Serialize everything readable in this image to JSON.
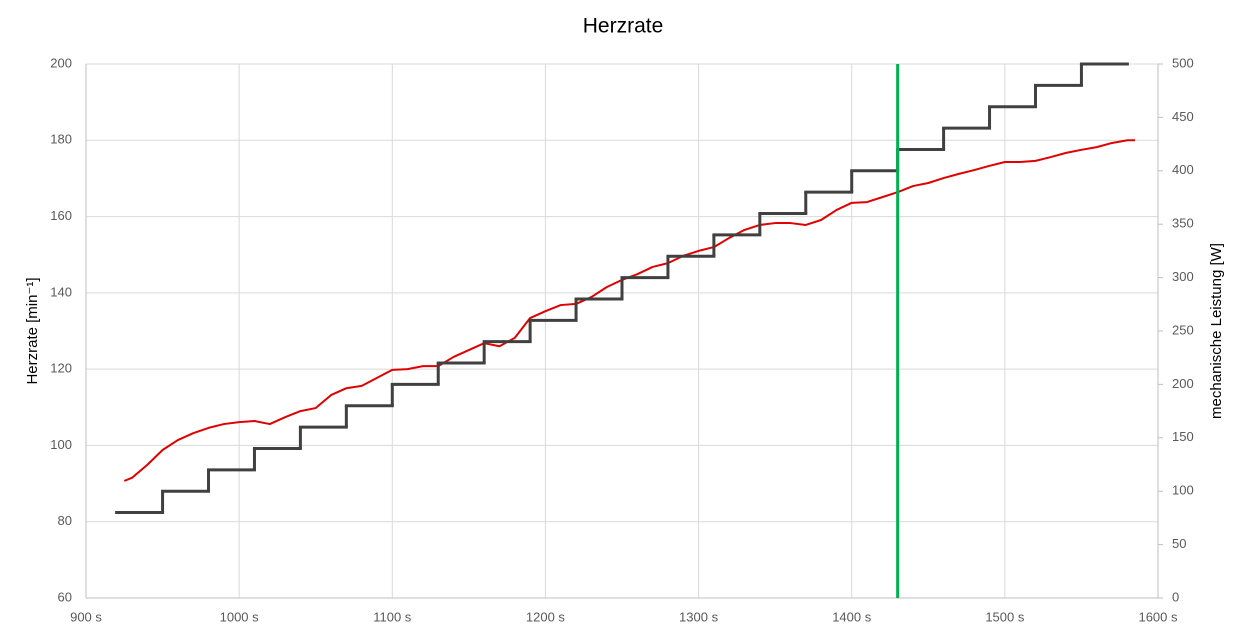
{
  "chart_data": {
    "type": "line",
    "title": "Herzrate",
    "y_label": "Herzrate [min⁻¹]",
    "y2_label": "mechanische Leistung [W]",
    "xlim": [
      900,
      1600
    ],
    "xticks": [
      {
        "value": 900,
        "label": "900 s"
      },
      {
        "value": 1000,
        "label": "1000 s"
      },
      {
        "value": 1100,
        "label": "1100 s"
      },
      {
        "value": 1200,
        "label": "1200 s"
      },
      {
        "value": 1300,
        "label": "1300 s"
      },
      {
        "value": 1400,
        "label": "1400 s"
      },
      {
        "value": 1500,
        "label": "1500 s"
      },
      {
        "value": 1600,
        "label": "1600 s"
      }
    ],
    "ylim": [
      60,
      200
    ],
    "yticks": [
      60,
      80,
      100,
      120,
      140,
      160,
      180,
      200
    ],
    "y2lim": [
      0,
      500
    ],
    "y2ticks": [
      0,
      50,
      100,
      150,
      200,
      250,
      300,
      350,
      400,
      450,
      500
    ],
    "grid": true,
    "series": [
      {
        "color": "#e00000",
        "x": [
          925,
          930,
          940,
          950,
          960,
          970,
          980,
          990,
          1000,
          1010,
          1020,
          1030,
          1040,
          1050,
          1060,
          1070,
          1080,
          1090,
          1100,
          1110,
          1120,
          1130,
          1140,
          1150,
          1160,
          1170,
          1180,
          1190,
          1200,
          1210,
          1220,
          1230,
          1240,
          1250,
          1260,
          1270,
          1280,
          1290,
          1300,
          1310,
          1320,
          1330,
          1340,
          1350,
          1360,
          1370,
          1380,
          1390,
          1400,
          1410,
          1420,
          1430,
          1440,
          1450,
          1460,
          1470,
          1480,
          1490,
          1500,
          1510,
          1520,
          1530,
          1540,
          1550,
          1560,
          1570,
          1580,
          1585
        ],
        "values": [
          90.7,
          91.5,
          94.9,
          98.8,
          101.4,
          103.2,
          104.6,
          105.6,
          106.1,
          106.4,
          105.6,
          107.4,
          109,
          109.8,
          113.2,
          115,
          115.6,
          117.7,
          119.8,
          120,
          120.8,
          120.8,
          123.2,
          125,
          126.8,
          126,
          128.2,
          133.4,
          135.2,
          136.8,
          137.1,
          138.9,
          141.5,
          143.4,
          144.9,
          146.8,
          147.8,
          149.7,
          151,
          152,
          154.4,
          156.5,
          157.8,
          158.3,
          158.3,
          157.8,
          159.1,
          161.7,
          163.6,
          163.8,
          165.1,
          166.4,
          168,
          168.8,
          170.1,
          171.2,
          172.2,
          173.3,
          174.3,
          174.3,
          174.6,
          175.6,
          176.7,
          177.5,
          178.2,
          179.3,
          180,
          180
        ]
      },
      {
        "color": "#404040",
        "axis": "y2",
        "step": "post",
        "x_end": 1580,
        "x": [
          920,
          950,
          980,
          1010,
          1040,
          1070,
          1100,
          1130,
          1160,
          1190,
          1220,
          1250,
          1280,
          1310,
          1340,
          1370,
          1400,
          1430,
          1460,
          1490,
          1520,
          1550
        ],
        "values": [
          80,
          100,
          120,
          140,
          160,
          180,
          200,
          220,
          240,
          260,
          280,
          300,
          320,
          340,
          360,
          380,
          400,
          420,
          440,
          460,
          480,
          500
        ]
      }
    ],
    "vline": {
      "x": 1430,
      "color": "#00b050"
    }
  }
}
